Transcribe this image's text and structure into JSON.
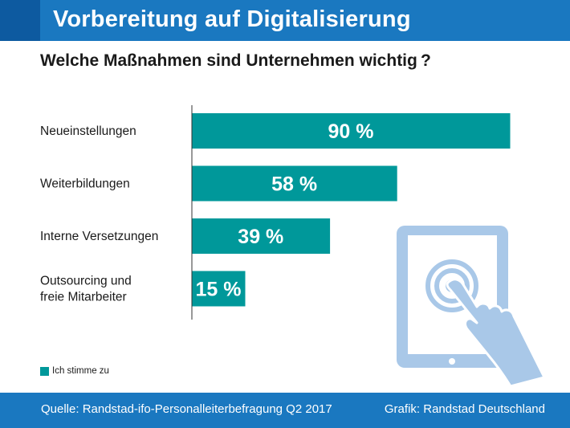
{
  "header": {
    "title": "Vorbereitung auf Digitalisierung"
  },
  "subtitle": "Welche Maßnahmen sind Unternehmen wichtig ?",
  "chart_data": {
    "type": "bar",
    "orientation": "horizontal",
    "categories": [
      [
        "Neueinstellungen"
      ],
      [
        "Weiterbildungen"
      ],
      [
        "Interne Versetzungen"
      ],
      [
        "Outsourcing und",
        "freie Mitarbeiter"
      ]
    ],
    "values": [
      90,
      58,
      39,
      15
    ],
    "value_labels": [
      "90 %",
      "58 %",
      "39 %",
      "15 %"
    ],
    "unit": "%",
    "xlim": [
      0,
      100
    ],
    "series_name": "Ich stimme zu",
    "color": "#00989a"
  },
  "legend": {
    "label": "Ich stimme zu",
    "color": "#00989a"
  },
  "illustration": {
    "icon": "tablet-touch-icon",
    "color": "#a9c8e8"
  },
  "footer": {
    "source": "Quelle: Randstad-ifo-Personalleiterbefragung Q2 2017",
    "credit": "Grafik: Randstad Deutschland"
  },
  "colors": {
    "header_bg": "#1a78c0",
    "header_accent": "#0d5aa0",
    "bar": "#00989a"
  }
}
